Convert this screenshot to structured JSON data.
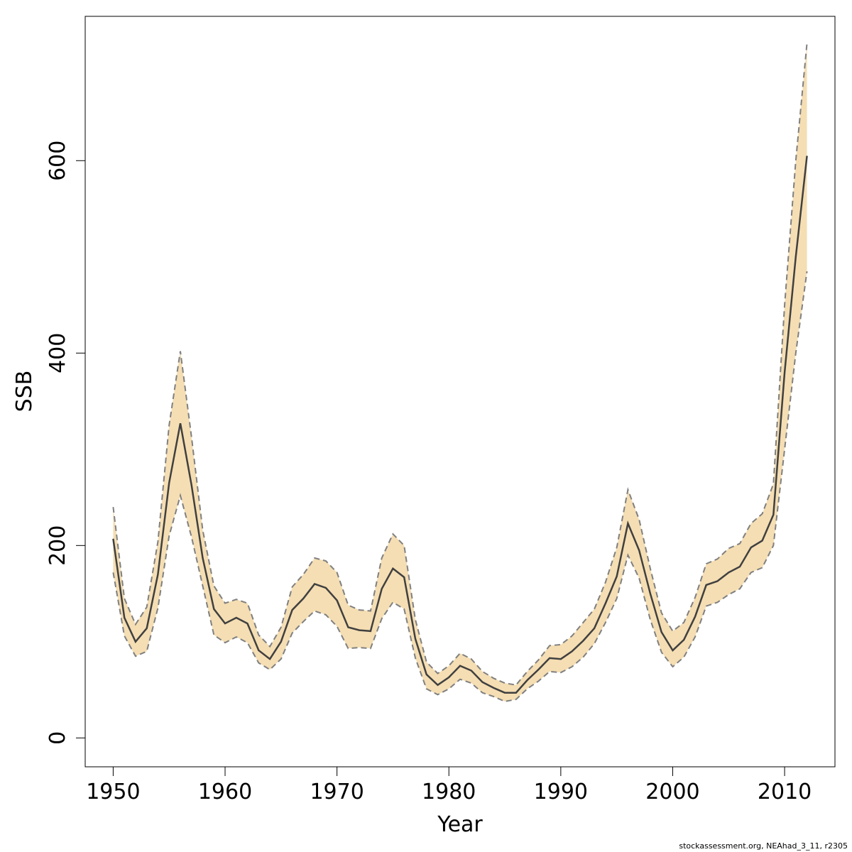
{
  "chart_data": {
    "type": "line",
    "title": "",
    "xlabel": "Year",
    "ylabel": "SSB",
    "xlim": [
      1947.5,
      2014.5
    ],
    "ylim": [
      -30,
      750
    ],
    "x_ticks": [
      1950,
      1960,
      1970,
      1980,
      1990,
      2000,
      2010
    ],
    "y_ticks": [
      0,
      200,
      400,
      600
    ],
    "grid": false,
    "band_color": "#f5deb3",
    "line_color": "#404040",
    "bound_color": "#808080",
    "years": [
      1950,
      1951,
      1952,
      1953,
      1954,
      1955,
      1956,
      1957,
      1958,
      1959,
      1960,
      1961,
      1962,
      1963,
      1964,
      1965,
      1966,
      1967,
      1968,
      1969,
      1970,
      1971,
      1972,
      1973,
      1974,
      1975,
      1976,
      1977,
      1978,
      1979,
      1980,
      1981,
      1982,
      1983,
      1984,
      1985,
      1986,
      1987,
      1988,
      1989,
      1990,
      1991,
      1992,
      1993,
      1994,
      1995,
      1996,
      1997,
      1998,
      1999,
      2000,
      2001,
      2002,
      2003,
      2004,
      2005,
      2006,
      2007,
      2008,
      2009,
      2010,
      2011,
      2012
    ],
    "estimate": [
      207,
      125,
      100,
      114,
      170,
      265,
      327,
      263,
      187,
      134,
      119,
      125,
      119,
      91,
      82,
      100,
      133,
      145,
      160,
      156,
      143,
      115,
      112,
      111,
      155,
      176,
      167,
      103,
      66,
      55,
      63,
      75,
      70,
      58,
      52,
      47,
      47,
      60,
      71,
      83,
      82,
      90,
      101,
      114,
      140,
      168,
      223,
      195,
      150,
      110,
      91,
      102,
      126,
      159,
      163,
      172,
      178,
      198,
      205,
      232,
      380,
      500,
      605
    ],
    "lower": [
      172,
      106,
      85,
      90,
      135,
      210,
      252,
      209,
      158,
      107,
      99,
      105,
      99,
      78,
      71,
      82,
      109,
      121,
      132,
      128,
      116,
      93,
      94,
      93,
      124,
      141,
      134,
      83,
      51,
      45,
      51,
      61,
      57,
      47,
      43,
      38,
      40,
      51,
      59,
      69,
      68,
      74,
      84,
      98,
      120,
      145,
      190,
      166,
      123,
      89,
      74,
      84,
      105,
      137,
      141,
      149,
      155,
      172,
      177,
      200,
      300,
      400,
      485
    ],
    "upper": [
      240,
      145,
      118,
      136,
      204,
      325,
      402,
      313,
      216,
      158,
      140,
      144,
      140,
      107,
      95,
      115,
      157,
      170,
      187,
      184,
      172,
      138,
      133,
      132,
      187,
      212,
      200,
      123,
      79,
      67,
      75,
      88,
      82,
      69,
      62,
      57,
      55,
      69,
      81,
      96,
      97,
      106,
      120,
      134,
      162,
      198,
      258,
      227,
      176,
      130,
      111,
      120,
      146,
      181,
      186,
      197,
      202,
      223,
      233,
      264,
      450,
      600,
      722
    ]
  },
  "footer": {
    "credit": "stockassessment.org, NEAhad_3_11, r2305"
  }
}
